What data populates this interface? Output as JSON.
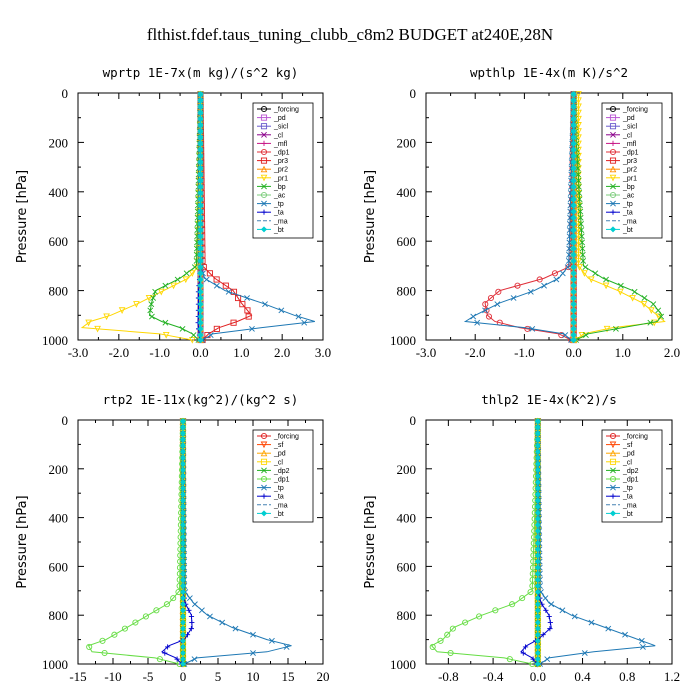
{
  "figure_title": "flthist.fdef.taus_tuning_clubb_c8m2  BUDGET at240E,28N",
  "y_axis_label": "Pressure [hPa]",
  "chart_data": [
    {
      "type": "line",
      "title": "wprtp  1E-7x(m kg)/(s^2 kg)",
      "ylabel": "Pressure [hPa]",
      "xlim": [
        -3.0,
        3.0
      ],
      "ylim": [
        1000,
        0
      ],
      "xticks": [
        "-3.0",
        "-2.0",
        "-1.0",
        "0.0",
        "1.0",
        "2.0",
        "3.0"
      ],
      "xtick_values": [
        -3,
        -2,
        -1,
        0,
        1,
        2,
        3
      ],
      "yticks": [
        "0",
        "200",
        "400",
        "600",
        "800",
        "1000"
      ],
      "ytick_values": [
        0,
        200,
        400,
        600,
        800,
        1000
      ],
      "legend_location": "upper-right",
      "pressure_levels": [
        5,
        700,
        750,
        800,
        850,
        900,
        925,
        950,
        975,
        1000
      ],
      "series": [
        {
          "name": "_forcing",
          "color": "#000000",
          "marker": "o",
          "values": [
            0,
            0,
            0,
            0,
            0,
            0,
            0,
            0,
            0,
            0
          ]
        },
        {
          "name": "_pd",
          "color": "#ba55d3",
          "marker": "s",
          "values": [
            0,
            0,
            0,
            0,
            0,
            0,
            0,
            0,
            0,
            0
          ]
        },
        {
          "name": "_sicl",
          "color": "#6a5acd",
          "marker": "s",
          "values": [
            0,
            0,
            0,
            0,
            0,
            0,
            0,
            0,
            0,
            0
          ]
        },
        {
          "name": "_cl",
          "color": "#8b008b",
          "marker": "x",
          "values": [
            0,
            0,
            0,
            0,
            0,
            0,
            0,
            0,
            0,
            0
          ]
        },
        {
          "name": "_mfl",
          "color": "#c71585",
          "marker": "+",
          "values": [
            0,
            0,
            0,
            0,
            0,
            0,
            0,
            0,
            0,
            0
          ]
        },
        {
          "name": "_dp1",
          "color": "#e0303a",
          "marker": "o",
          "values": [
            0,
            0,
            0,
            0,
            0,
            0,
            0,
            0,
            0,
            0
          ]
        },
        {
          "name": "_pr3",
          "color": "#e02020",
          "marker": "s",
          "values": [
            0,
            0.05,
            0.35,
            0.8,
            1.0,
            1.25,
            0.9,
            0.45,
            0.2,
            0.05
          ]
        },
        {
          "name": "_pr2",
          "color": "#ff8c00",
          "marker": "^",
          "values": [
            0,
            0,
            0,
            0,
            0,
            0,
            0,
            0,
            0,
            0
          ]
        },
        {
          "name": "_pr1",
          "color": "#ffd700",
          "marker": "v",
          "values": [
            0,
            -0.05,
            -0.3,
            -0.9,
            -1.5,
            -2.2,
            -2.7,
            -2.9,
            -1.0,
            -0.2
          ]
        },
        {
          "name": "_bp",
          "color": "#22b022",
          "marker": "x",
          "values": [
            0,
            -0.1,
            -0.5,
            -1.1,
            -1.2,
            -1.25,
            -0.95,
            -0.5,
            -0.2,
            -0.05
          ]
        },
        {
          "name": "_ac",
          "color": "#7ccd7c",
          "marker": "o",
          "values": [
            0,
            0,
            0,
            0,
            0,
            0,
            0,
            0,
            0,
            0
          ]
        },
        {
          "name": "_tp",
          "color": "#1e78b4",
          "marker": "x",
          "values": [
            0,
            0,
            0.1,
            0.6,
            1.5,
            2.3,
            2.8,
            1.5,
            0.3,
            0.05
          ]
        },
        {
          "name": "_ta",
          "color": "#0000cd",
          "marker": "+",
          "values": [
            0,
            0,
            -0.02,
            -0.05,
            -0.05,
            -0.05,
            -0.06,
            -0.05,
            -0.03,
            -0.01
          ]
        },
        {
          "name": "_ma",
          "color": "#4682b4",
          "marker": "-",
          "values": [
            0,
            0,
            0,
            0,
            0,
            0,
            0,
            0,
            0,
            0
          ]
        },
        {
          "name": "_bt",
          "color": "#00ced1",
          "marker": "D",
          "values": [
            0,
            0,
            0,
            0,
            0,
            0,
            0,
            0,
            0,
            0
          ]
        }
      ]
    },
    {
      "type": "line",
      "title": "wpthlp  1E-4x(m K)/s^2",
      "ylabel": "Pressure [hPa]",
      "xlim": [
        -3.0,
        2.0
      ],
      "ylim": [
        1000,
        0
      ],
      "xticks": [
        "-3.0",
        "-2.0",
        "-1.0",
        "0.0",
        "1.0",
        "2.0"
      ],
      "xtick_values": [
        -3,
        -2,
        -1,
        0,
        1,
        2
      ],
      "yticks": [
        "0",
        "200",
        "400",
        "600",
        "800",
        "1000"
      ],
      "ytick_values": [
        0,
        200,
        400,
        600,
        800,
        1000
      ],
      "legend_location": "upper-right",
      "pressure_levels": [
        5,
        700,
        750,
        800,
        850,
        900,
        925,
        950,
        975,
        1000
      ],
      "series": [
        {
          "name": "_forcing",
          "color": "#000000",
          "marker": "o",
          "values": [
            0,
            0,
            0,
            0,
            0,
            0,
            0,
            0,
            0,
            0
          ]
        },
        {
          "name": "_pd",
          "color": "#ba55d3",
          "marker": "s",
          "values": [
            0,
            0,
            0,
            0,
            0,
            0,
            0,
            0,
            0,
            0
          ]
        },
        {
          "name": "_sicl",
          "color": "#6a5acd",
          "marker": "s",
          "values": [
            0,
            0,
            0,
            0,
            0,
            0,
            0,
            0,
            0,
            0
          ]
        },
        {
          "name": "_cl",
          "color": "#8b008b",
          "marker": "x",
          "values": [
            0,
            0,
            0,
            0,
            0,
            0,
            0,
            0,
            0,
            0
          ]
        },
        {
          "name": "_mfl",
          "color": "#c71585",
          "marker": "+",
          "values": [
            0,
            0,
            0,
            0,
            0,
            0,
            0,
            0,
            0,
            0
          ]
        },
        {
          "name": "_dp1",
          "color": "#e0303a",
          "marker": "o",
          "values": [
            0,
            -0.05,
            -0.6,
            -1.5,
            -1.8,
            -1.75,
            -1.6,
            -1.1,
            -0.3,
            -0.05
          ]
        },
        {
          "name": "_pr3",
          "color": "#e02020",
          "marker": "s",
          "values": [
            0,
            0,
            0,
            0,
            0,
            0,
            0,
            0,
            0,
            0
          ]
        },
        {
          "name": "_pr2",
          "color": "#ff8c00",
          "marker": "^",
          "values": [
            0,
            0,
            0,
            0,
            0,
            0,
            0,
            0,
            0,
            0
          ]
        },
        {
          "name": "_pr1",
          "color": "#ffd700",
          "marker": "v",
          "values": [
            0.1,
            0.1,
            0.3,
            0.9,
            1.4,
            1.7,
            1.85,
            0.8,
            0.2,
            0.05
          ]
        },
        {
          "name": "_bp",
          "color": "#22b022",
          "marker": "x",
          "values": [
            0,
            0.2,
            0.6,
            1.2,
            1.6,
            1.8,
            1.7,
            1.0,
            0.3,
            0.05
          ]
        },
        {
          "name": "_ac",
          "color": "#7ccd7c",
          "marker": "o",
          "values": [
            0,
            0,
            0,
            0,
            0,
            0,
            0,
            0,
            0,
            0
          ]
        },
        {
          "name": "_tp",
          "color": "#1e78b4",
          "marker": "x",
          "values": [
            0,
            -0.1,
            -0.3,
            -0.8,
            -1.5,
            -2.0,
            -2.2,
            -1.0,
            -0.2,
            -0.05
          ]
        },
        {
          "name": "_ta",
          "color": "#0000cd",
          "marker": "+",
          "values": [
            0,
            0,
            0,
            0,
            0,
            0,
            0,
            0,
            0,
            0
          ]
        },
        {
          "name": "_ma",
          "color": "#4682b4",
          "marker": "-",
          "values": [
            0,
            0,
            0,
            0,
            0,
            0,
            0,
            0,
            0,
            0
          ]
        },
        {
          "name": "_bt",
          "color": "#00ced1",
          "marker": "D",
          "values": [
            0,
            0,
            0,
            0,
            0,
            0,
            0,
            0,
            0,
            0
          ]
        }
      ]
    },
    {
      "type": "line",
      "title": "rtp2  1E-11x(kg^2)/(kg^2 s)",
      "ylabel": "Pressure [hPa]",
      "xlim": [
        -15,
        20
      ],
      "ylim": [
        1000,
        0
      ],
      "xticks": [
        "-15",
        "-10",
        "-5",
        "0",
        "5",
        "10",
        "15",
        "20"
      ],
      "xtick_values": [
        -15,
        -10,
        -5,
        0,
        5,
        10,
        15,
        20
      ],
      "yticks": [
        "0",
        "200",
        "400",
        "600",
        "800",
        "1000"
      ],
      "ytick_values": [
        0,
        200,
        400,
        600,
        800,
        1000
      ],
      "legend_location": "upper-right",
      "pressure_levels": [
        5,
        700,
        750,
        800,
        850,
        900,
        925,
        950,
        975,
        1000
      ],
      "series": [
        {
          "name": "_forcing",
          "color": "#e02020",
          "marker": "o",
          "values": [
            0,
            0,
            0,
            0,
            0,
            0,
            0,
            0,
            0,
            0
          ]
        },
        {
          "name": "_sf",
          "color": "#ff4500",
          "marker": "v",
          "values": [
            0,
            0,
            0,
            0,
            0,
            0,
            0,
            0,
            0,
            0
          ]
        },
        {
          "name": "_pd",
          "color": "#ffa500",
          "marker": "^",
          "values": [
            0,
            0,
            0,
            0,
            0,
            0,
            0,
            0,
            0,
            0
          ]
        },
        {
          "name": "_cl",
          "color": "#ffd700",
          "marker": "s",
          "values": [
            0,
            0,
            0,
            0,
            0,
            0,
            0,
            0,
            0,
            0
          ]
        },
        {
          "name": "_dp2",
          "color": "#22b022",
          "marker": "x",
          "values": [
            0,
            0,
            0,
            0,
            0,
            0,
            0,
            0,
            0,
            0
          ]
        },
        {
          "name": "_dp1",
          "color": "#66dd44",
          "marker": "o",
          "values": [
            0,
            -0.5,
            -2.0,
            -5.0,
            -8.0,
            -11.0,
            -13.5,
            -13.0,
            -4.0,
            -0.5
          ]
        },
        {
          "name": "_tp",
          "color": "#1e78b4",
          "marker": "x",
          "values": [
            0,
            0.2,
            1.5,
            3.5,
            7.0,
            12.0,
            15.5,
            12.0,
            2.0,
            0.2
          ]
        },
        {
          "name": "_ta",
          "color": "#0000cd",
          "marker": "+",
          "values": [
            0,
            0,
            0.3,
            1.2,
            1.3,
            0.2,
            -2.0,
            -3.0,
            -1.0,
            -0.2
          ]
        },
        {
          "name": "_ma",
          "color": "#4682b4",
          "marker": "-",
          "values": [
            0,
            0,
            0,
            0,
            0,
            0,
            0,
            0,
            0,
            0
          ]
        },
        {
          "name": "_bt",
          "color": "#00ced1",
          "marker": "D",
          "values": [
            0,
            0,
            0,
            0,
            0,
            0,
            0,
            0,
            0,
            0
          ]
        }
      ]
    },
    {
      "type": "line",
      "title": "thlp2  1E-4x(K^2)/s",
      "ylabel": "Pressure [hPa]",
      "xlim": [
        -1.0,
        1.2
      ],
      "ylim": [
        1000,
        0
      ],
      "xticks": [
        "-0.8",
        "-0.4",
        "0.0",
        "0.4",
        "0.8",
        "1.2"
      ],
      "xtick_values": [
        -0.8,
        -0.4,
        0.0,
        0.4,
        0.8,
        1.2
      ],
      "yticks": [
        "0",
        "200",
        "400",
        "600",
        "800",
        "1000"
      ],
      "ytick_values": [
        0,
        200,
        400,
        600,
        800,
        1000
      ],
      "legend_location": "upper-right",
      "pressure_levels": [
        5,
        700,
        750,
        800,
        850,
        900,
        925,
        950,
        975,
        1000
      ],
      "series": [
        {
          "name": "_forcing",
          "color": "#e02020",
          "marker": "o",
          "values": [
            0,
            0,
            0,
            0,
            0,
            0,
            0,
            0,
            0,
            0
          ]
        },
        {
          "name": "_sf",
          "color": "#ff4500",
          "marker": "v",
          "values": [
            0,
            0,
            0,
            0,
            0,
            0,
            0,
            0,
            0,
            0
          ]
        },
        {
          "name": "_pd",
          "color": "#ffa500",
          "marker": "^",
          "values": [
            0,
            0,
            0,
            0,
            0,
            0,
            0,
            0,
            0,
            0
          ]
        },
        {
          "name": "_cl",
          "color": "#ffd700",
          "marker": "s",
          "values": [
            0,
            0,
            0,
            0,
            0,
            0,
            0,
            0,
            0,
            0
          ]
        },
        {
          "name": "_dp2",
          "color": "#22b022",
          "marker": "x",
          "values": [
            0,
            0,
            0,
            0,
            0,
            0,
            0,
            0,
            0,
            0
          ]
        },
        {
          "name": "_dp1",
          "color": "#66dd44",
          "marker": "o",
          "values": [
            0,
            -0.05,
            -0.2,
            -0.5,
            -0.75,
            -0.85,
            -0.95,
            -0.9,
            -0.3,
            -0.05
          ]
        },
        {
          "name": "_tp",
          "color": "#1e78b4",
          "marker": "x",
          "values": [
            0,
            0.02,
            0.1,
            0.3,
            0.6,
            0.9,
            1.05,
            0.5,
            0.1,
            0.02
          ]
        },
        {
          "name": "_ta",
          "color": "#0000cd",
          "marker": "+",
          "values": [
            0,
            0,
            0.03,
            0.1,
            0.12,
            0.0,
            -0.1,
            -0.15,
            -0.05,
            -0.01
          ]
        },
        {
          "name": "_ma",
          "color": "#4682b4",
          "marker": "-",
          "values": [
            0,
            0,
            0,
            0,
            0,
            0,
            0,
            0,
            0,
            0
          ]
        },
        {
          "name": "_bt",
          "color": "#00ced1",
          "marker": "D",
          "values": [
            0,
            0,
            0,
            0,
            0,
            0,
            0,
            0,
            0,
            0
          ]
        }
      ]
    }
  ]
}
